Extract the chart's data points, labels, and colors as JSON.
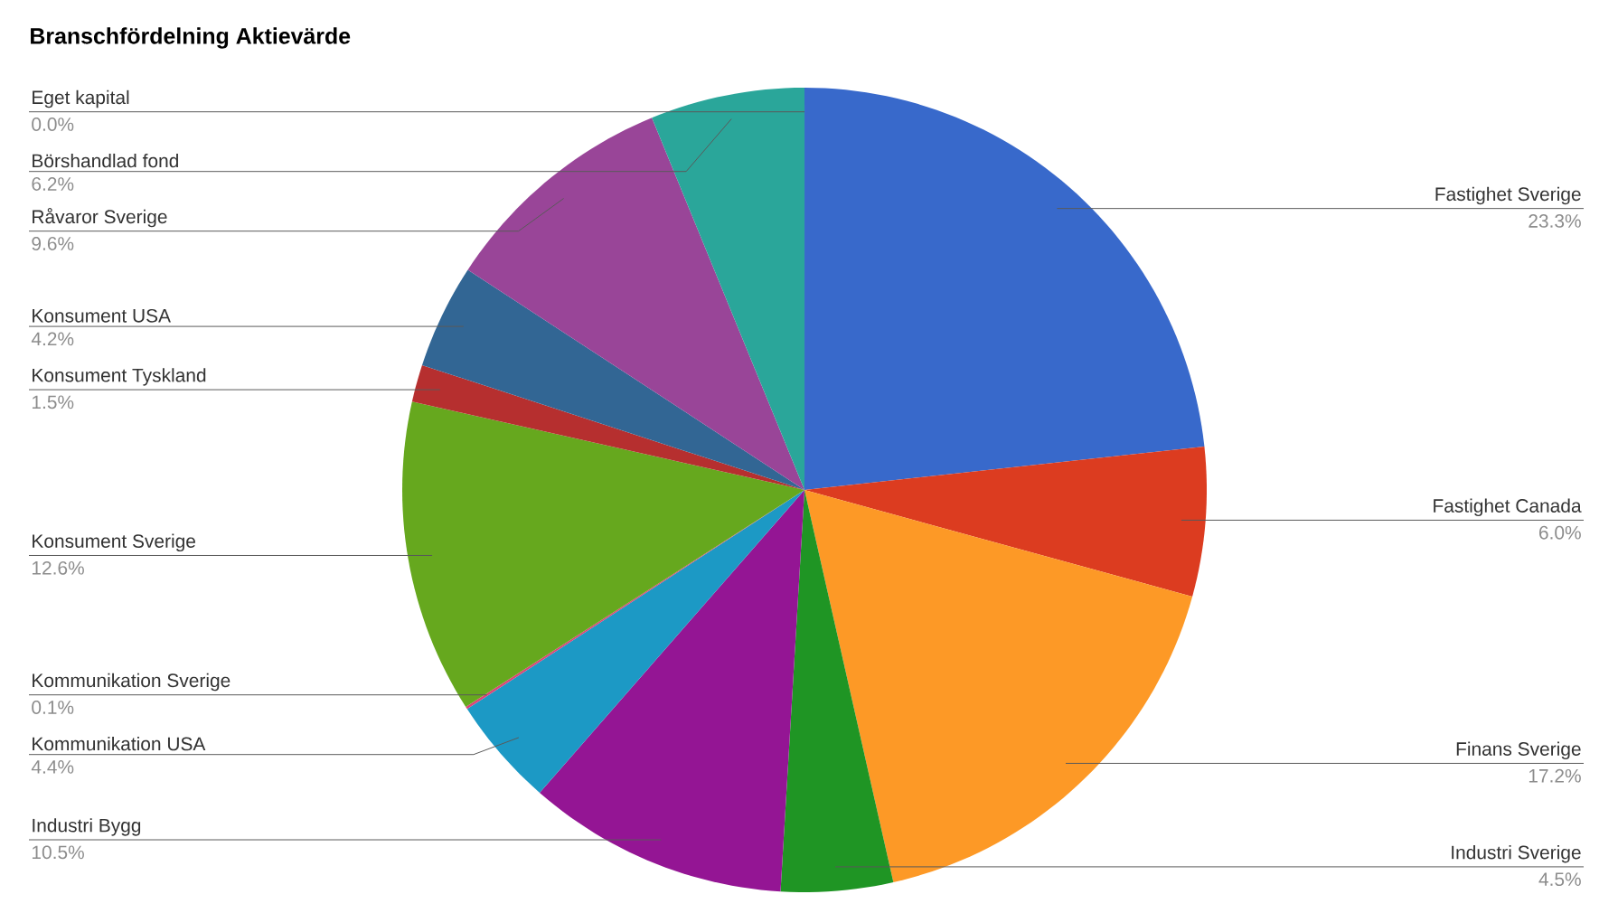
{
  "chart_data": {
    "type": "pie",
    "title": "Branschfördelning Aktievärde",
    "categories": [
      "Fastighet Sverige",
      "Fastighet Canada",
      "Finans Sverige",
      "Industri Sverige",
      "Industri Bygg",
      "Kommunikation USA",
      "Kommunikation Sverige",
      "Konsument Sverige",
      "Konsument Tyskland",
      "Konsument USA",
      "Råvaror Sverige",
      "Börshandlad fond",
      "Eget kapital"
    ],
    "values": [
      23.3,
      6.0,
      17.2,
      4.5,
      10.5,
      4.4,
      0.1,
      12.6,
      1.5,
      4.2,
      9.6,
      6.2,
      0.0
    ],
    "value_labels": [
      "23.3%",
      "6.0%",
      "17.2%",
      "4.5%",
      "10.5%",
      "4.4%",
      "0.1%",
      "12.6%",
      "1.5%",
      "4.2%",
      "9.6%",
      "6.2%",
      "0.0%"
    ],
    "colors": [
      "#3869cb",
      "#dc3c20",
      "#fd9926",
      "#1f9524",
      "#941594",
      "#1c99c5",
      "#dd4477",
      "#66a81e",
      "#b62f2f",
      "#326694",
      "#994598",
      "#2aa69a",
      "#aaaa11"
    ]
  }
}
